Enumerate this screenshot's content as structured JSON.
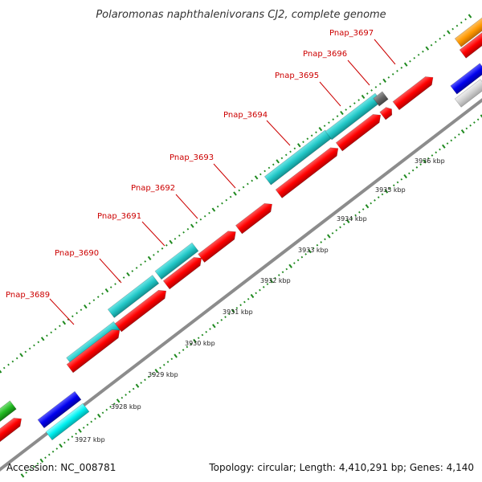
{
  "title": "Polaromonas naphthalenivorans CJ2, complete genome",
  "accession_label": "Accession: NC_008781",
  "topology_label": "Topology: circular; Length: 4,410,291 bp; Genes: 4,140",
  "colors": {
    "backbone": "#8c8c8c",
    "tick": "#1f8a1f",
    "label": "#cc0000",
    "reverse_gene": "#ff0000",
    "forward_gene": "#22c7c7"
  },
  "scale_ticks": [
    {
      "label": "3927 kbp"
    },
    {
      "label": "3928 kbp"
    },
    {
      "label": "3929 kbp"
    },
    {
      "label": "3930 kbp"
    },
    {
      "label": "3931 kbp"
    },
    {
      "label": "3932 kbp"
    },
    {
      "label": "3933 kbp"
    },
    {
      "label": "3934 kbp"
    },
    {
      "label": "3935 kbp"
    },
    {
      "label": "3936 kbp"
    }
  ],
  "gene_labels": [
    {
      "label": "Pnap_3689"
    },
    {
      "label": "Pnap_3690"
    },
    {
      "label": "Pnap_3691"
    },
    {
      "label": "Pnap_3692"
    },
    {
      "label": "Pnap_3693"
    },
    {
      "label": "Pnap_3694"
    },
    {
      "label": "Pnap_3695"
    },
    {
      "label": "Pnap_3696"
    },
    {
      "label": "Pnap_3697"
    }
  ]
}
